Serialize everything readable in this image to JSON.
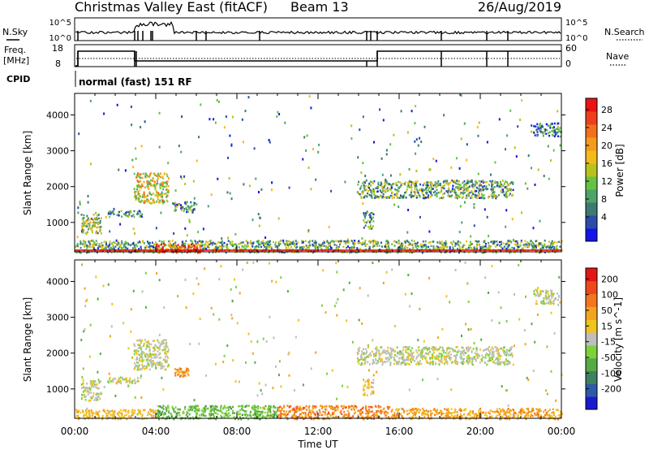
{
  "header": {
    "title": "Christmas Valley East (fitACF)",
    "beam": "Beam 13",
    "date": "26/Aug/2019"
  },
  "top_panels": {
    "nsky_label": "N.Sky",
    "nsky_ticks": [
      "10^5",
      "10^0"
    ],
    "nsearch_label": "N.Search",
    "nsearch_ticks": [
      "10^5",
      "10^0"
    ],
    "freq_label": [
      "Freq.",
      "[MHz]"
    ],
    "freq_ticks": [
      "18",
      "8"
    ],
    "nave_label": "Nave",
    "nave_ticks": [
      "60",
      "0"
    ],
    "cpid_label": "CPID",
    "cpid_value": "normal (fast) 151 RF"
  },
  "colors": {
    "power_scale": [
      "#1414e6",
      "#2a4ea8",
      "#3d7a74",
      "#4fa36a",
      "#66c242",
      "#b9c21c",
      "#f3ba1a",
      "#f49a1c",
      "#f2701c",
      "#ee3f1c",
      "#e81414"
    ],
    "velocity_scale": [
      "#1a1ad0",
      "#2c5aa8",
      "#3f8060",
      "#55aa45",
      "#7fd13c",
      "#bebebe",
      "#f1c31e",
      "#f3a31c",
      "#f3761c",
      "#ef471c",
      "#e71414"
    ]
  },
  "chart_data": [
    {
      "type": "heatmap",
      "name": "Power",
      "xlabel": "",
      "ylabel": "Slant Range [km]",
      "xlim_hours": [
        0,
        24
      ],
      "ylim_km": [
        180,
        4600
      ],
      "yticks": [
        "4000",
        "3000",
        "2000",
        "1000"
      ],
      "ytick_values": [
        4000,
        3000,
        2000,
        1000
      ],
      "colorbar_label": "Power [dB]",
      "colorbar_ticks": [
        "28",
        "24",
        "20",
        "16",
        "12",
        "8",
        "4"
      ],
      "colorbar_range": [
        0,
        30
      ],
      "regions": [
        {
          "t0": 0.3,
          "t1": 1.3,
          "r0": 700,
          "r1": 1250,
          "lvl": 0.45
        },
        {
          "t0": 2.9,
          "t1": 4.6,
          "r0": 1550,
          "r1": 2400,
          "lvl": 0.55
        },
        {
          "t0": 1.6,
          "t1": 3.4,
          "r0": 1180,
          "r1": 1350,
          "lvl": 0.25
        },
        {
          "t0": 4.8,
          "t1": 6.0,
          "r0": 1300,
          "r1": 1600,
          "lvl": 0.3
        },
        {
          "t0": 13.9,
          "t1": 21.6,
          "r0": 1700,
          "r1": 2200,
          "lvl": 0.35
        },
        {
          "t0": 14.2,
          "t1": 14.7,
          "r0": 850,
          "r1": 1300,
          "lvl": 0.3
        },
        {
          "t0": 22.6,
          "t1": 23.9,
          "r0": 3400,
          "r1": 3800,
          "lvl": 0.2
        },
        {
          "t0": 0.0,
          "t1": 24.0,
          "r0": 180,
          "r1": 520,
          "lvl": 0.35
        },
        {
          "t0": 4.0,
          "t1": 6.2,
          "r0": 180,
          "r1": 420,
          "lvl": 0.85
        }
      ]
    },
    {
      "type": "heatmap",
      "name": "Velocity",
      "xlabel": "Time UT",
      "ylabel": "Slant Range [km]",
      "xlim_hours": [
        0,
        24
      ],
      "ylim_km": [
        180,
        4600
      ],
      "xticks": [
        "00:00",
        "04:00",
        "08:00",
        "12:00",
        "16:00",
        "20:00",
        "00:00"
      ],
      "xtick_values": [
        0,
        4,
        8,
        12,
        16,
        20,
        24
      ],
      "yticks": [
        "4000",
        "3000",
        "2000",
        "1000"
      ],
      "ytick_values": [
        4000,
        3000,
        2000,
        1000
      ],
      "colorbar_label": "Velocity [m s^-1]",
      "colorbar_ticks": [
        "200",
        "100",
        "50",
        "15",
        "-15",
        "-50",
        "-100",
        "-200"
      ],
      "colorbar_range": [
        -250,
        250
      ],
      "regions": [
        {
          "t0": 0.3,
          "t1": 1.3,
          "r0": 700,
          "r1": 1250,
          "lvl": 0.5
        },
        {
          "t0": 2.9,
          "t1": 4.6,
          "r0": 1550,
          "r1": 2400,
          "lvl": 0.5
        },
        {
          "t0": 1.6,
          "t1": 3.4,
          "r0": 1180,
          "r1": 1350,
          "lvl": 0.5
        },
        {
          "t0": 4.9,
          "t1": 5.6,
          "r0": 1350,
          "r1": 1600,
          "lvl": 0.7
        },
        {
          "t0": 13.9,
          "t1": 21.6,
          "r0": 1700,
          "r1": 2200,
          "lvl": 0.5
        },
        {
          "t0": 14.2,
          "t1": 14.7,
          "r0": 850,
          "r1": 1300,
          "lvl": 0.6
        },
        {
          "t0": 22.6,
          "t1": 23.9,
          "r0": 3400,
          "r1": 3800,
          "lvl": 0.5
        },
        {
          "t0": 4.0,
          "t1": 10.0,
          "r0": 180,
          "r1": 560,
          "lvl": 0.35
        },
        {
          "t0": 10.0,
          "t1": 15.5,
          "r0": 180,
          "r1": 560,
          "lvl": 0.75
        },
        {
          "t0": 15.5,
          "t1": 24.0,
          "r0": 180,
          "r1": 480,
          "lvl": 0.68
        },
        {
          "t0": 0.0,
          "t1": 4.0,
          "r0": 180,
          "r1": 450,
          "lvl": 0.62
        }
      ]
    }
  ]
}
